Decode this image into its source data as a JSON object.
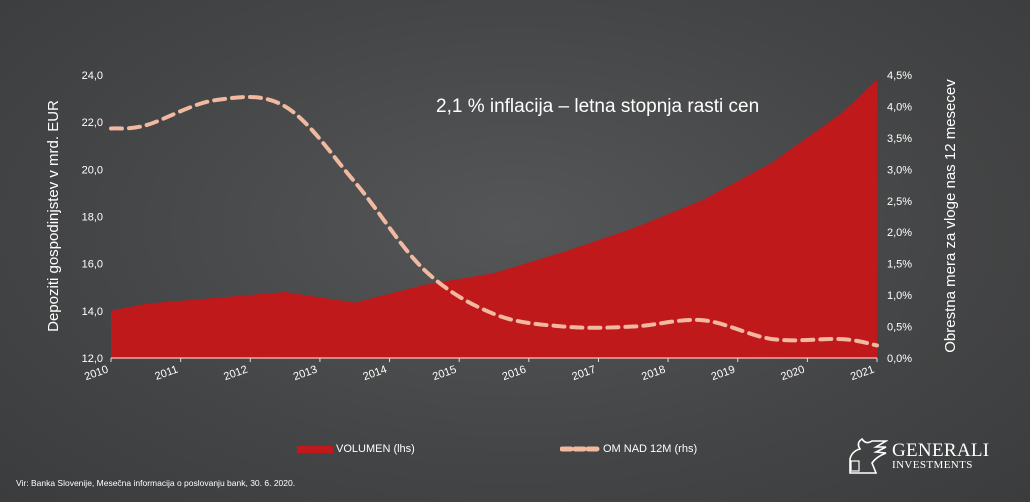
{
  "colors": {
    "volume": "#c0191c",
    "rate": "#f0b9a0",
    "background": "#48494a"
  },
  "chart_data": {
    "type": "area",
    "title": "2,1 % inflacija – letna stopnja rasti cen",
    "ylabel": "Depoziti gospodinjstev v mrd. EUR",
    "y2label": "Obrestna mera za vloge nas 12 mesecev",
    "ylim": [
      12,
      24
    ],
    "y2lim": [
      0,
      4.5
    ],
    "x_ticks": [
      "2010",
      "2011",
      "2012",
      "2013",
      "2014",
      "2015",
      "2016",
      "2017",
      "2018",
      "2019",
      "2020",
      "2021"
    ],
    "y_ticks": [
      "12,0",
      "14,0",
      "16,0",
      "18,0",
      "20,0",
      "22,0",
      "24,0"
    ],
    "y2_ticks": [
      "0,0%",
      "0,5%",
      "1,0%",
      "1,5%",
      "2,0%",
      "2,5%",
      "3,0%",
      "3,5%",
      "4,0%",
      "4,5%"
    ],
    "series": [
      {
        "name": "VOLUMEN (lhs)",
        "type": "area",
        "axis": "left",
        "x": [
          2010,
          2010.5,
          2011.5,
          2012.5,
          2013.5,
          2014.5,
          2015.5,
          2016.5,
          2017.5,
          2018.5,
          2019.5,
          2020.5,
          2021
        ],
        "values": [
          14.0,
          14.3,
          14.55,
          14.8,
          14.35,
          15.1,
          15.6,
          16.5,
          17.5,
          18.7,
          20.3,
          22.4,
          23.8
        ]
      },
      {
        "name": "OM NAD 12M (rhs)",
        "type": "line",
        "style": "dashed",
        "axis": "right",
        "x": [
          2010,
          2010.5,
          2011.5,
          2012.5,
          2013.5,
          2014.5,
          2015.5,
          2016.5,
          2017.5,
          2018.5,
          2019.5,
          2020.5,
          2021
        ],
        "values": [
          3.65,
          3.7,
          4.1,
          4.0,
          2.8,
          1.4,
          0.7,
          0.5,
          0.5,
          0.6,
          0.3,
          0.3,
          0.2
        ]
      }
    ],
    "legend": "bottom",
    "grid": false
  },
  "footer": {
    "source": "Vir: Banka Slovenije, Mesečna informacija o poslovanju bank, 30. 6. 2020.",
    "logo_line1": "GENERALI",
    "logo_line2": "INVESTMENTS"
  }
}
